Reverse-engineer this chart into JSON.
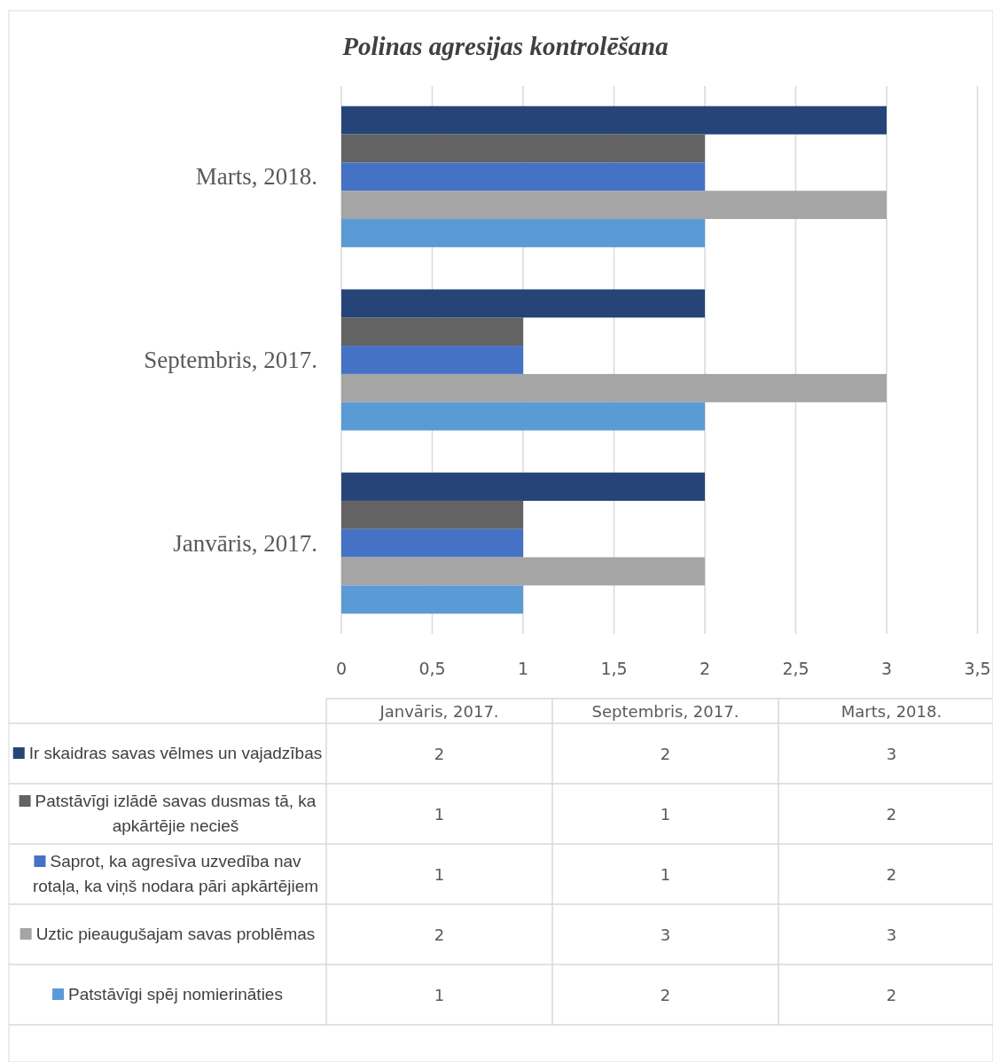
{
  "chart_data": [
    {
      "type": "bar",
      "orientation": "horizontal",
      "title": "Polinas agresijas kontrolēšana",
      "categories": [
        "Marts, 2018.",
        "Septembris, 2017.",
        "Janvāris, 2017."
      ],
      "series": [
        {
          "color": "#264478",
          "values": [
            3,
            2,
            2
          ]
        },
        {
          "color": "#636363",
          "values": [
            2,
            1,
            1
          ]
        },
        {
          "color": "#4472c4",
          "values": [
            2,
            1,
            1
          ]
        },
        {
          "color": "#a5a5a5",
          "values": [
            3,
            3,
            2
          ]
        },
        {
          "color": "#5b9bd5",
          "values": [
            2,
            2,
            1
          ]
        }
      ],
      "xlim": [
        0,
        3.5
      ],
      "xticks": [
        0,
        {
          "value": 0.5,
          "label": "0,5"
        },
        1,
        {
          "value": 1.5,
          "label": "1,5"
        },
        2,
        {
          "value": 2.5,
          "label": "2,5"
        },
        3,
        {
          "value": 3.5,
          "label": "3,5"
        }
      ],
      "grid": "x"
    },
    {
      "type": "heatmap",
      "categories": [
        "Janvāris, 2017.",
        "Septembris, 2017.",
        "Marts, 2018."
      ],
      "y_categories": [
        "Ir skaidras savas vēlmes un vajadzības",
        "Patstāvīgi izlādē savas dusmas tā, ka apkārtējie necieš",
        "Saprot, ka agresīva uzvedība nav rotaļa, ka viņš nodara pāri apkārtējiem",
        "Uztic pieaugušajam savas problēmas",
        "Patstāvīgi spēj nomierināties"
      ],
      "cells": [
        [
          2,
          2,
          3
        ],
        [
          1,
          1,
          2
        ],
        [
          1,
          1,
          2
        ],
        [
          2,
          3,
          3
        ],
        [
          1,
          2,
          2
        ]
      ],
      "data_labels": true
    }
  ]
}
